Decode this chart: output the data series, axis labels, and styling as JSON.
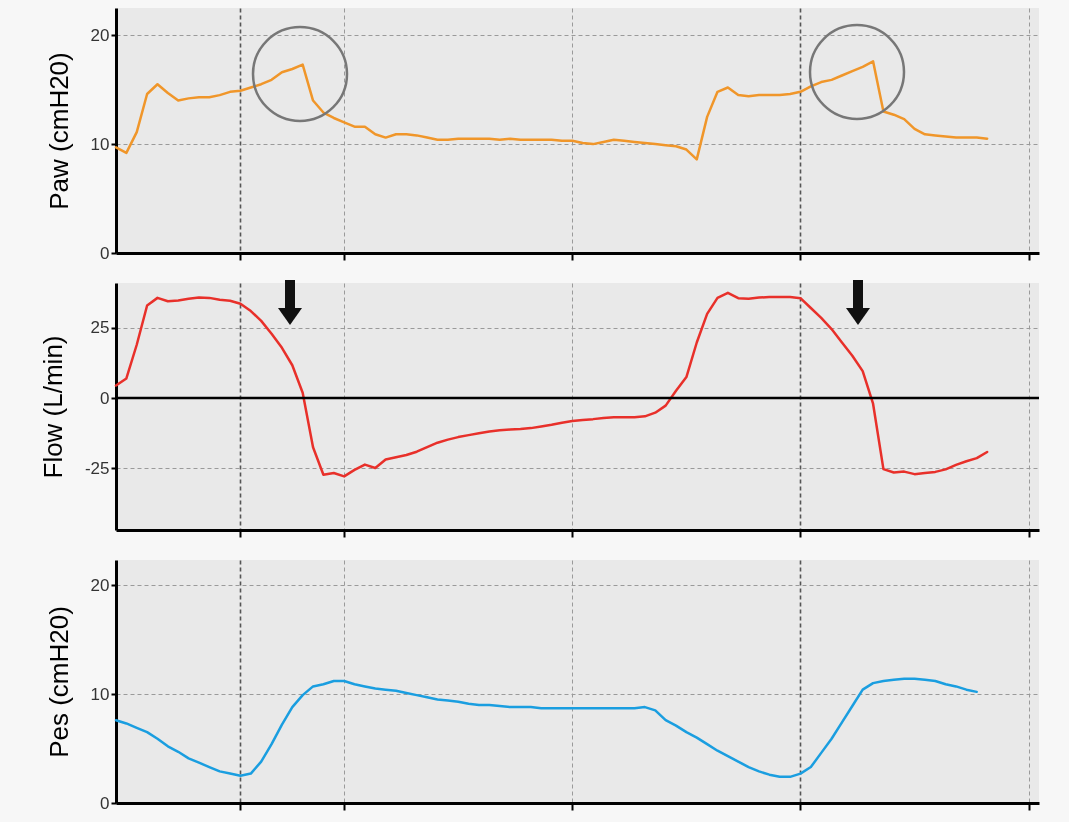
{
  "chart_data": [
    {
      "type": "line",
      "ylabel": "Paw (cmH20)",
      "categories": [
        null,
        null,
        null,
        null,
        null,
        null,
        null,
        null,
        null,
        null,
        null,
        null,
        null,
        null,
        null,
        null,
        null,
        null,
        null,
        null,
        null,
        null,
        null,
        null,
        null,
        null,
        null,
        null,
        null,
        null,
        null,
        null,
        null,
        null,
        null,
        null,
        null,
        null,
        null,
        null,
        null,
        null,
        null,
        null,
        null,
        null,
        null,
        null,
        null,
        null,
        null,
        null,
        null,
        null,
        null,
        null,
        null,
        null,
        null,
        null,
        null,
        null,
        null,
        null,
        null,
        null,
        null,
        null,
        null,
        null,
        null,
        null,
        null,
        null,
        null,
        null,
        null,
        null,
        null,
        null,
        null,
        null,
        null,
        null,
        null,
        null,
        null,
        null,
        null,
        null
      ],
      "series": [
        {
          "color": "#f0962a",
          "values": [
            9.7,
            9.2,
            11.1,
            14.6,
            15.5,
            14.7,
            14.0,
            14.2,
            14.3,
            14.3,
            14.5,
            14.8,
            14.9,
            15.2,
            15.5,
            15.9,
            16.6,
            16.9,
            17.3,
            14.0,
            12.9,
            12.4,
            12.0,
            11.6,
            11.6,
            10.9,
            10.6,
            10.9,
            10.9,
            10.8,
            10.6,
            10.4,
            10.4,
            10.5,
            10.5,
            10.5,
            10.5,
            10.4,
            10.5,
            10.4,
            10.4,
            10.4,
            10.4,
            10.3,
            10.3,
            10.1,
            10.0,
            10.2,
            10.4,
            10.3,
            10.2,
            10.1,
            10.0,
            9.9,
            9.8,
            9.5,
            8.6,
            12.5,
            14.8,
            15.2,
            14.5,
            14.4,
            14.5,
            14.5,
            14.5,
            14.6,
            14.8,
            15.3,
            15.7,
            15.9,
            16.3,
            16.7,
            17.1,
            17.6,
            13.0,
            12.7,
            12.3,
            11.4,
            10.9,
            10.8,
            10.7,
            10.6,
            10.6,
            10.6,
            10.5,
            null,
            null,
            null,
            null,
            null
          ]
        }
      ],
      "ylim": [
        0,
        22.5
      ],
      "yticks": [
        0,
        10,
        20
      ],
      "grid": true,
      "tick_labels": "y"
    },
    {
      "type": "line",
      "ylabel": "Flow (L/min)",
      "categories": [
        null,
        null,
        null,
        null,
        null,
        null,
        null,
        null,
        null,
        null,
        null,
        null,
        null,
        null,
        null,
        null,
        null,
        null,
        null,
        null,
        null,
        null,
        null,
        null,
        null,
        null,
        null,
        null,
        null,
        null,
        null,
        null,
        null,
        null,
        null,
        null,
        null,
        null,
        null,
        null,
        null,
        null,
        null,
        null,
        null,
        null,
        null,
        null,
        null,
        null,
        null,
        null,
        null,
        null,
        null,
        null,
        null,
        null,
        null,
        null,
        null,
        null,
        null,
        null,
        null,
        null,
        null,
        null,
        null,
        null,
        null,
        null,
        null,
        null,
        null,
        null,
        null,
        null,
        null,
        null,
        null,
        null,
        null,
        null,
        null,
        null,
        null,
        null,
        null,
        null
      ],
      "series": [
        {
          "color": "#e8302a",
          "values": [
            4.5,
            7,
            19,
            33,
            35.7,
            34.5,
            34.8,
            35.4,
            35.8,
            35.7,
            35,
            34.7,
            33.6,
            31,
            27.5,
            22.9,
            17.9,
            11.7,
            1.9,
            -17.5,
            -27.3,
            -26.7,
            -27.9,
            -25.6,
            -23.7,
            -24.9,
            -21.9,
            -21.1,
            -20.3,
            -19.1,
            -17.5,
            -15.9,
            -14.8,
            -13.9,
            -13.2,
            -12.5,
            -11.9,
            -11.5,
            -11.2,
            -11,
            -10.7,
            -10.1,
            -9.5,
            -8.8,
            -8.2,
            -7.8,
            -7.5,
            -7.1,
            -6.8,
            -6.8,
            -6.8,
            -6.5,
            -5.2,
            -2.7,
            2.6,
            7.5,
            19.8,
            30,
            35.7,
            37.5,
            35.6,
            35.4,
            35.8,
            36,
            36,
            36,
            35.6,
            32.1,
            28.6,
            24.6,
            19.8,
            15.1,
            9.6,
            -2,
            -25.3,
            -26.5,
            -26.2,
            -27.1,
            -26.7,
            -26.3,
            -25.4,
            -23.8,
            -22.5,
            -21.4,
            -19.2,
            null,
            null,
            null,
            null,
            null
          ]
        }
      ],
      "ylim": [
        -47,
        41
      ],
      "yticks": [
        -25,
        0,
        25
      ],
      "grid": true,
      "tick_labels": "y",
      "ref_lines": [
        {
          "axis": "y",
          "value": 0,
          "color": "#000000",
          "line_style": "solid"
        }
      ]
    },
    {
      "type": "line",
      "ylabel": "Pes (cmH20)",
      "categories": [
        null,
        null,
        null,
        null,
        null,
        null,
        null,
        null,
        null,
        null,
        null,
        null,
        null,
        null,
        null,
        null,
        null,
        null,
        null,
        null,
        null,
        null,
        null,
        null,
        null,
        null,
        null,
        null,
        null,
        null,
        null,
        null,
        null,
        null,
        null,
        null,
        null,
        null,
        null,
        null,
        null,
        null,
        null,
        null,
        null,
        null,
        null,
        null,
        null,
        null,
        null,
        null,
        null,
        null,
        null,
        null,
        null,
        null,
        null,
        null,
        null,
        null,
        null,
        null,
        null,
        null,
        null,
        null,
        null,
        null,
        null,
        null,
        null,
        null,
        null,
        null,
        null,
        null,
        null,
        null,
        null,
        null,
        null,
        null,
        null,
        null,
        null,
        null,
        null,
        null
      ],
      "series": [
        {
          "color": "#1a9ee0",
          "values": [
            7.6,
            7.3,
            6.9,
            6.5,
            5.9,
            5.2,
            4.7,
            4.1,
            3.7,
            3.3,
            2.9,
            2.7,
            2.5,
            2.7,
            3.8,
            5.4,
            7.2,
            8.8,
            9.9,
            10.7,
            10.9,
            11.2,
            11.2,
            10.9,
            10.7,
            10.5,
            10.4,
            10.3,
            10.1,
            9.9,
            9.7,
            9.5,
            9.4,
            9.3,
            9.1,
            9,
            9,
            8.9,
            8.8,
            8.8,
            8.8,
            8.7,
            8.7,
            8.7,
            8.7,
            8.7,
            8.7,
            8.7,
            8.7,
            8.7,
            8.7,
            8.8,
            8.5,
            7.6,
            7.1,
            6.5,
            6,
            5.4,
            4.8,
            4.3,
            3.8,
            3.3,
            2.9,
            2.6,
            2.4,
            2.4,
            2.7,
            3.3,
            4.6,
            5.9,
            7.4,
            8.9,
            10.4,
            11,
            11.2,
            11.3,
            11.4,
            11.4,
            11.3,
            11.2,
            10.9,
            10.7,
            10.4,
            10.2,
            null,
            null,
            null,
            null,
            null,
            null
          ]
        }
      ],
      "ylim": [
        0,
        22.3
      ],
      "yticks": [
        0,
        10,
        20
      ],
      "grid": true,
      "tick_labels": "y"
    }
  ]
}
